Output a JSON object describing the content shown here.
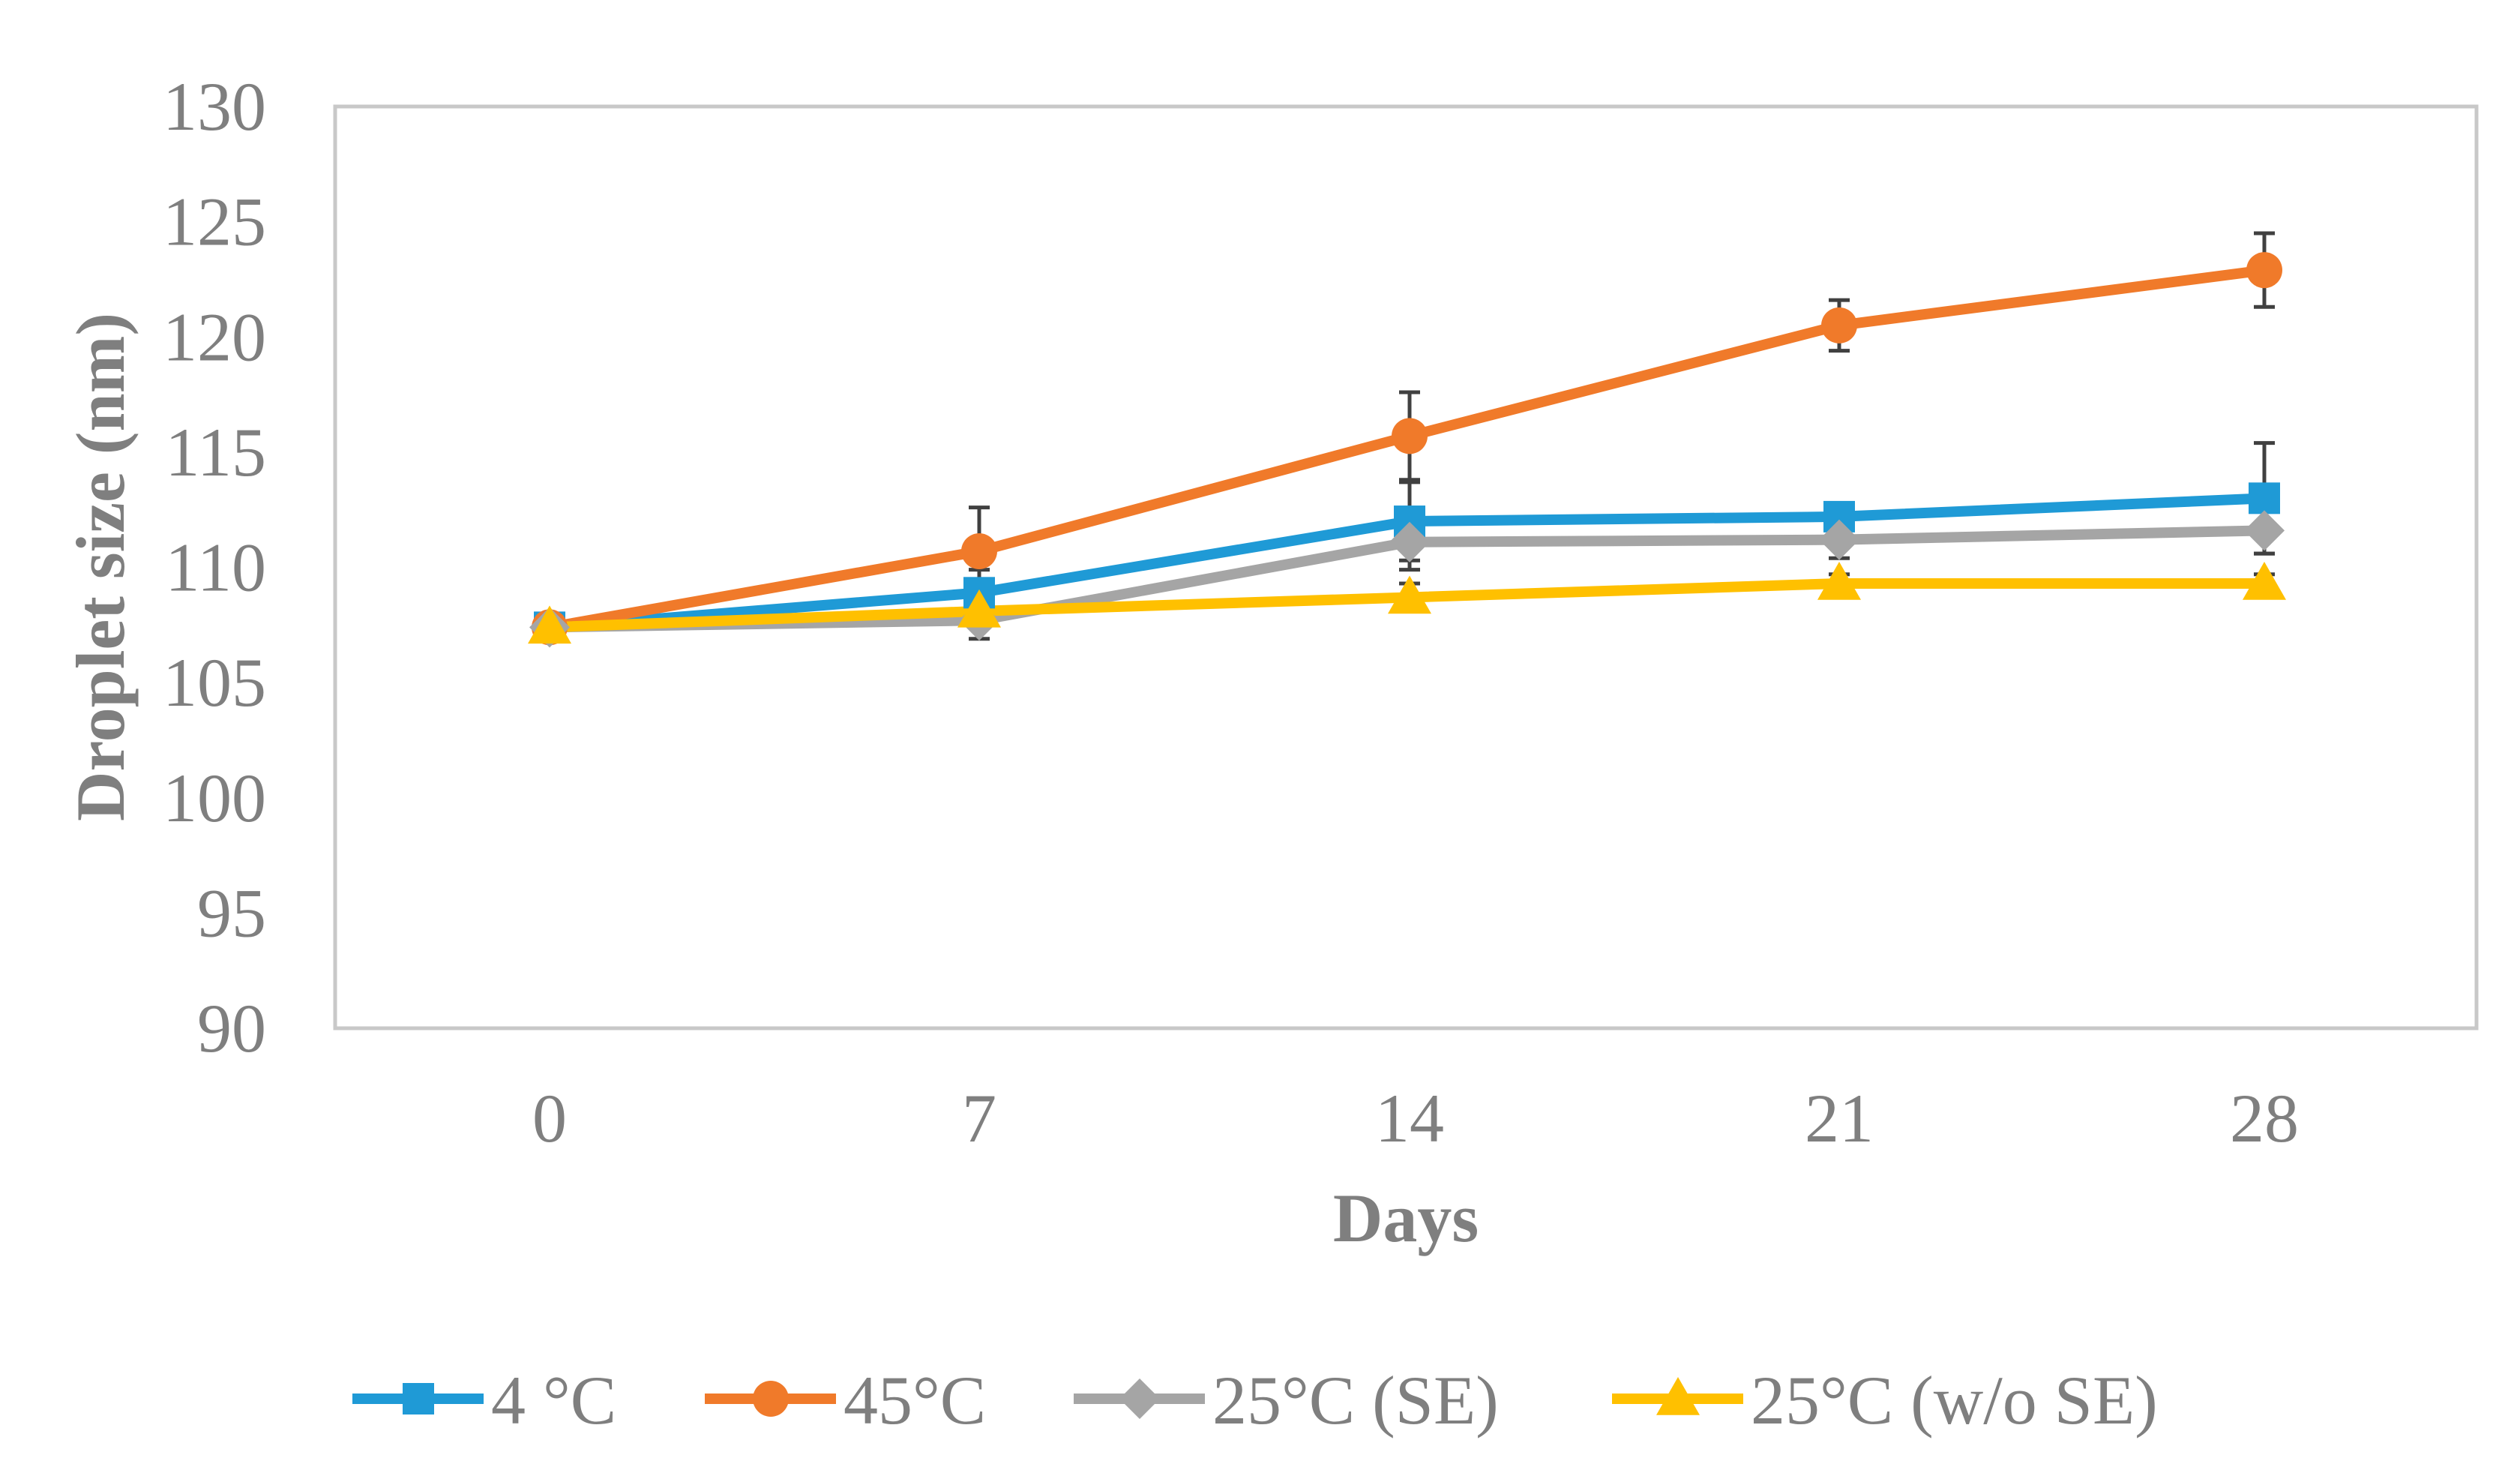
{
  "chart_data": {
    "type": "line",
    "title": "",
    "xlabel": "Days",
    "ylabel": "Droplet size (nm)",
    "x": [
      0,
      7,
      14,
      21,
      28
    ],
    "x_tick_labels": [
      "0",
      "7",
      "14",
      "21",
      "28"
    ],
    "ylim": [
      90,
      130
    ],
    "y_ticks": [
      90,
      95,
      100,
      105,
      110,
      115,
      120,
      125,
      130
    ],
    "y_tick_labels": [
      "90",
      "95",
      "100",
      "105",
      "110",
      "115",
      "120",
      "125",
      "130"
    ],
    "grid": false,
    "legend_position": "bottom",
    "series": [
      {
        "name": "4 °C",
        "color": "#1f9ad6",
        "marker": "square",
        "values": [
          107.4,
          108.9,
          112.0,
          112.2,
          113.0
        ],
        "errors": [
          0.4,
          1.0,
          1.7,
          0.6,
          2.4
        ]
      },
      {
        "name": "45°C",
        "color": "#f07a2a",
        "marker": "circle",
        "values": [
          107.4,
          110.7,
          115.7,
          120.5,
          122.9
        ],
        "errors": [
          0.4,
          1.9,
          1.9,
          1.1,
          1.6
        ]
      },
      {
        "name": "25°C (SE)",
        "color": "#a5a5a5",
        "marker": "diamond",
        "values": [
          107.4,
          107.7,
          111.1,
          111.2,
          111.6
        ],
        "errors": [
          0.4,
          0.8,
          1.2,
          0.8,
          1.0
        ]
      },
      {
        "name": "25°C (w/o SE)",
        "color": "#ffc000",
        "marker": "triangle",
        "values": [
          107.4,
          108.1,
          108.7,
          109.3,
          109.3
        ],
        "errors": [
          0.3,
          0.4,
          0.6,
          0.4,
          0.4
        ]
      }
    ]
  }
}
